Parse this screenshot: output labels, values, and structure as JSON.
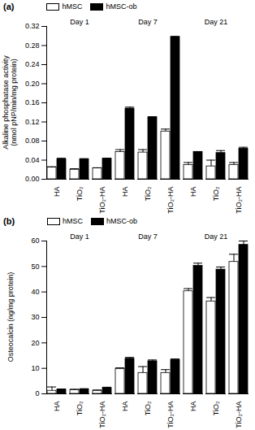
{
  "chart_data": [
    {
      "type": "bar",
      "title": "(a)",
      "y_label": "Alkaline phosphatase activity (nmol pNP/min/mg protein)",
      "categories": [
        "HA",
        "TiO₂",
        "TiO₂-HA",
        "HA",
        "TiO₂",
        "TiO₂-HA",
        "HA",
        "TiO₂",
        "TiO₂-HA"
      ],
      "annotations": [
        "Day 1",
        "Day 7",
        "Day 21"
      ],
      "series": [
        {
          "name": "hMSC",
          "color": "#ffffff",
          "values": [
            0.025,
            0.02,
            0.023,
            0.057,
            0.056,
            0.1,
            0.03,
            0.027,
            0.03
          ],
          "errors": [
            0.001,
            0.002,
            0.001,
            0.005,
            0.006,
            0.005,
            0.005,
            0.013,
            0.005
          ]
        },
        {
          "name": "hMSC-ob",
          "color": "#000000",
          "values": [
            0.042,
            0.042,
            0.043,
            0.148,
            0.13,
            0.298,
            0.057,
            0.055,
            0.064
          ],
          "errors": [
            0.002,
            0.001,
            0.001,
            0.003,
            0.001,
            0.001,
            0.001,
            0.005,
            0.003
          ]
        }
      ],
      "ylim": [
        0,
        0.32
      ],
      "yticks": [
        {
          "value": 0,
          "label": "0.00"
        },
        {
          "value": 0.04,
          "label": "0.04"
        },
        {
          "value": 0.08,
          "label": "0.08"
        },
        {
          "value": 0.12,
          "label": "0.12"
        },
        {
          "value": 0.16,
          "label": "0.16"
        },
        {
          "value": 0.2,
          "label": "0.20"
        },
        {
          "value": 0.24,
          "label": "0.24"
        },
        {
          "value": 0.28,
          "label": "0.28"
        },
        {
          "value": 0.32,
          "label": "0.32"
        }
      ],
      "grid": false,
      "legend": "top"
    },
    {
      "type": "bar",
      "title": "(b)",
      "y_label": "Osteocalcin (ng/mg protein)",
      "categories": [
        "HA",
        "TiO₂",
        "TiO₂-HA",
        "HA",
        "TiO₂",
        "TiO₂-HA",
        "HA",
        "TiO₂",
        "TiO₂-HA"
      ],
      "annotations": [
        "Day 1",
        "Day 7",
        "Day 21"
      ],
      "series": [
        {
          "name": "hMSC",
          "color": "#ffffff",
          "values": [
            1.2,
            1.5,
            1.2,
            9.8,
            8.2,
            8.2,
            40.3,
            36.3,
            51.8
          ],
          "errors": [
            1.5,
            0.3,
            0.3,
            0.4,
            2.5,
            1.3,
            1.0,
            1.5,
            3.0
          ]
        },
        {
          "name": "hMSC-ob",
          "color": "#000000",
          "values": [
            1.7,
            1.8,
            2.3,
            13.8,
            12.8,
            13.3,
            50.3,
            48.8,
            58.5
          ],
          "errors": [
            0.2,
            0.2,
            0.3,
            0.5,
            0.5,
            0.4,
            1.0,
            1.0,
            1.5
          ]
        }
      ],
      "ylim": [
        0,
        60
      ],
      "yticks": [
        0,
        10,
        20,
        30,
        40,
        50,
        60
      ],
      "grid": false,
      "legend": "top"
    }
  ]
}
